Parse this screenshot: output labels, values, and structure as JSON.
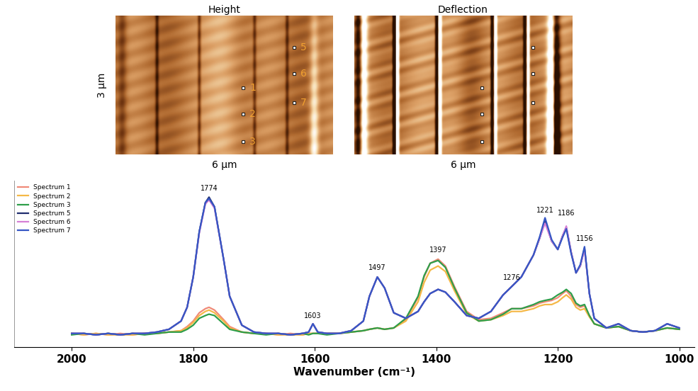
{
  "figure": {
    "panels": [
      {
        "title": "Height",
        "width_label": "6 µm",
        "height_label": "3 µm",
        "point_labels": true
      },
      {
        "title": "Deflection",
        "width_label": "6 µm",
        "point_labels": false
      }
    ],
    "points": [
      "1",
      "2",
      "3",
      "5",
      "6",
      "7"
    ]
  },
  "chart_data": {
    "type": "line",
    "xlabel": "Wavenumber (cm⁻¹)",
    "x": [
      2000,
      1980,
      1960,
      1940,
      1920,
      1900,
      1880,
      1860,
      1840,
      1820,
      1810,
      1800,
      1790,
      1780,
      1774,
      1765,
      1750,
      1740,
      1720,
      1700,
      1680,
      1660,
      1640,
      1620,
      1610,
      1603,
      1595,
      1580,
      1560,
      1540,
      1520,
      1510,
      1497,
      1485,
      1470,
      1450,
      1430,
      1420,
      1410,
      1397,
      1385,
      1370,
      1350,
      1330,
      1310,
      1290,
      1276,
      1260,
      1240,
      1230,
      1221,
      1210,
      1200,
      1192,
      1186,
      1178,
      1170,
      1163,
      1156,
      1148,
      1140,
      1120,
      1100,
      1080,
      1060,
      1040,
      1020,
      1000
    ],
    "xlim": [
      2095,
      975
    ],
    "xticks": [
      2000,
      1800,
      1600,
      1400,
      1200,
      1000
    ],
    "ylim": [
      -0.09,
      1.12
    ],
    "tick_labels": "x",
    "legend": "upper left",
    "line_style": "solid",
    "series": [
      {
        "name": "Spectrum 1",
        "color": "#f08a78",
        "values": [
          0.01,
          0.0,
          0.01,
          0.0,
          0.01,
          0.0,
          0.01,
          0.01,
          0.02,
          0.03,
          0.06,
          0.1,
          0.16,
          0.19,
          0.2,
          0.18,
          0.11,
          0.06,
          0.02,
          0.01,
          0.01,
          0.0,
          0.01,
          0.0,
          0.01,
          0.01,
          0.01,
          0.01,
          0.01,
          0.02,
          0.03,
          0.04,
          0.05,
          0.04,
          0.05,
          0.11,
          0.27,
          0.42,
          0.52,
          0.55,
          0.5,
          0.35,
          0.17,
          0.11,
          0.12,
          0.16,
          0.19,
          0.19,
          0.21,
          0.23,
          0.24,
          0.25,
          0.27,
          0.3,
          0.32,
          0.28,
          0.22,
          0.2,
          0.21,
          0.14,
          0.08,
          0.05,
          0.06,
          0.03,
          0.02,
          0.03,
          0.05,
          0.04
        ]
      },
      {
        "name": "Spectrum 2",
        "color": "#f5b847",
        "values": [
          0.01,
          0.0,
          0.01,
          0.0,
          0.0,
          0.0,
          0.01,
          0.01,
          0.02,
          0.03,
          0.05,
          0.09,
          0.14,
          0.17,
          0.18,
          0.16,
          0.1,
          0.05,
          0.02,
          0.01,
          0.01,
          0.0,
          0.0,
          0.0,
          0.01,
          0.01,
          0.01,
          0.01,
          0.01,
          0.02,
          0.03,
          0.04,
          0.05,
          0.04,
          0.05,
          0.1,
          0.24,
          0.38,
          0.47,
          0.5,
          0.46,
          0.32,
          0.15,
          0.1,
          0.11,
          0.14,
          0.17,
          0.17,
          0.19,
          0.21,
          0.22,
          0.22,
          0.24,
          0.27,
          0.29,
          0.26,
          0.2,
          0.18,
          0.19,
          0.13,
          0.08,
          0.05,
          0.06,
          0.03,
          0.02,
          0.03,
          0.05,
          0.04
        ]
      },
      {
        "name": "Spectrum 3",
        "color": "#2e9e4a",
        "values": [
          0.0,
          0.01,
          0.0,
          0.01,
          0.0,
          0.01,
          0.0,
          0.01,
          0.02,
          0.02,
          0.04,
          0.07,
          0.12,
          0.14,
          0.15,
          0.14,
          0.08,
          0.04,
          0.02,
          0.01,
          0.0,
          0.01,
          0.0,
          0.01,
          0.0,
          0.01,
          0.01,
          0.0,
          0.01,
          0.02,
          0.03,
          0.04,
          0.05,
          0.04,
          0.05,
          0.12,
          0.28,
          0.43,
          0.52,
          0.54,
          0.49,
          0.34,
          0.16,
          0.1,
          0.11,
          0.15,
          0.19,
          0.19,
          0.22,
          0.24,
          0.25,
          0.26,
          0.29,
          0.31,
          0.33,
          0.3,
          0.23,
          0.21,
          0.22,
          0.14,
          0.08,
          0.05,
          0.06,
          0.03,
          0.02,
          0.03,
          0.05,
          0.04
        ]
      },
      {
        "name": "Spectrum 5",
        "color": "#1f2d6e",
        "values": [
          0.01,
          0.01,
          0.0,
          0.01,
          0.0,
          0.01,
          0.01,
          0.02,
          0.04,
          0.1,
          0.2,
          0.42,
          0.75,
          0.96,
          1.0,
          0.93,
          0.55,
          0.28,
          0.07,
          0.02,
          0.01,
          0.01,
          0.0,
          0.01,
          0.02,
          0.08,
          0.02,
          0.01,
          0.01,
          0.03,
          0.1,
          0.28,
          0.42,
          0.34,
          0.16,
          0.12,
          0.17,
          0.24,
          0.3,
          0.33,
          0.31,
          0.24,
          0.14,
          0.12,
          0.17,
          0.29,
          0.35,
          0.42,
          0.58,
          0.7,
          0.83,
          0.68,
          0.62,
          0.72,
          0.78,
          0.6,
          0.45,
          0.5,
          0.63,
          0.3,
          0.12,
          0.05,
          0.08,
          0.03,
          0.02,
          0.03,
          0.08,
          0.05
        ]
      },
      {
        "name": "Spectrum 6",
        "color": "#d680d6",
        "values": [
          0.01,
          0.01,
          0.0,
          0.01,
          0.0,
          0.01,
          0.01,
          0.02,
          0.04,
          0.1,
          0.2,
          0.42,
          0.74,
          0.95,
          0.98,
          0.92,
          0.55,
          0.28,
          0.07,
          0.02,
          0.01,
          0.01,
          0.0,
          0.01,
          0.02,
          0.08,
          0.02,
          0.01,
          0.01,
          0.03,
          0.1,
          0.28,
          0.42,
          0.34,
          0.16,
          0.12,
          0.17,
          0.24,
          0.3,
          0.33,
          0.31,
          0.24,
          0.14,
          0.12,
          0.17,
          0.29,
          0.35,
          0.42,
          0.58,
          0.7,
          0.81,
          0.68,
          0.62,
          0.72,
          0.79,
          0.6,
          0.45,
          0.5,
          0.62,
          0.3,
          0.12,
          0.05,
          0.08,
          0.03,
          0.02,
          0.03,
          0.08,
          0.05
        ]
      },
      {
        "name": "Spectrum 7",
        "color": "#3556c4",
        "values": [
          0.01,
          0.01,
          0.0,
          0.01,
          0.0,
          0.01,
          0.01,
          0.02,
          0.04,
          0.1,
          0.2,
          0.42,
          0.75,
          0.96,
          0.99,
          0.93,
          0.55,
          0.28,
          0.07,
          0.02,
          0.01,
          0.01,
          0.0,
          0.01,
          0.02,
          0.08,
          0.02,
          0.01,
          0.01,
          0.03,
          0.1,
          0.28,
          0.42,
          0.34,
          0.16,
          0.12,
          0.17,
          0.24,
          0.3,
          0.33,
          0.31,
          0.24,
          0.14,
          0.12,
          0.17,
          0.29,
          0.35,
          0.42,
          0.58,
          0.71,
          0.85,
          0.69,
          0.62,
          0.71,
          0.77,
          0.59,
          0.45,
          0.51,
          0.64,
          0.3,
          0.12,
          0.05,
          0.08,
          0.03,
          0.02,
          0.03,
          0.08,
          0.05
        ]
      }
    ],
    "annotations": [
      {
        "text": "1774",
        "x": 1774,
        "y": 1.04
      },
      {
        "text": "1603",
        "x": 1603,
        "y": 0.11
      },
      {
        "text": "1497",
        "x": 1497,
        "y": 0.46
      },
      {
        "text": "1397",
        "x": 1397,
        "y": 0.59
      },
      {
        "text": "1276",
        "x": 1276,
        "y": 0.39
      },
      {
        "text": "1221",
        "x": 1221,
        "y": 0.88
      },
      {
        "text": "1186",
        "x": 1186,
        "y": 0.86
      },
      {
        "text": "1156",
        "x": 1156,
        "y": 0.67
      }
    ]
  }
}
